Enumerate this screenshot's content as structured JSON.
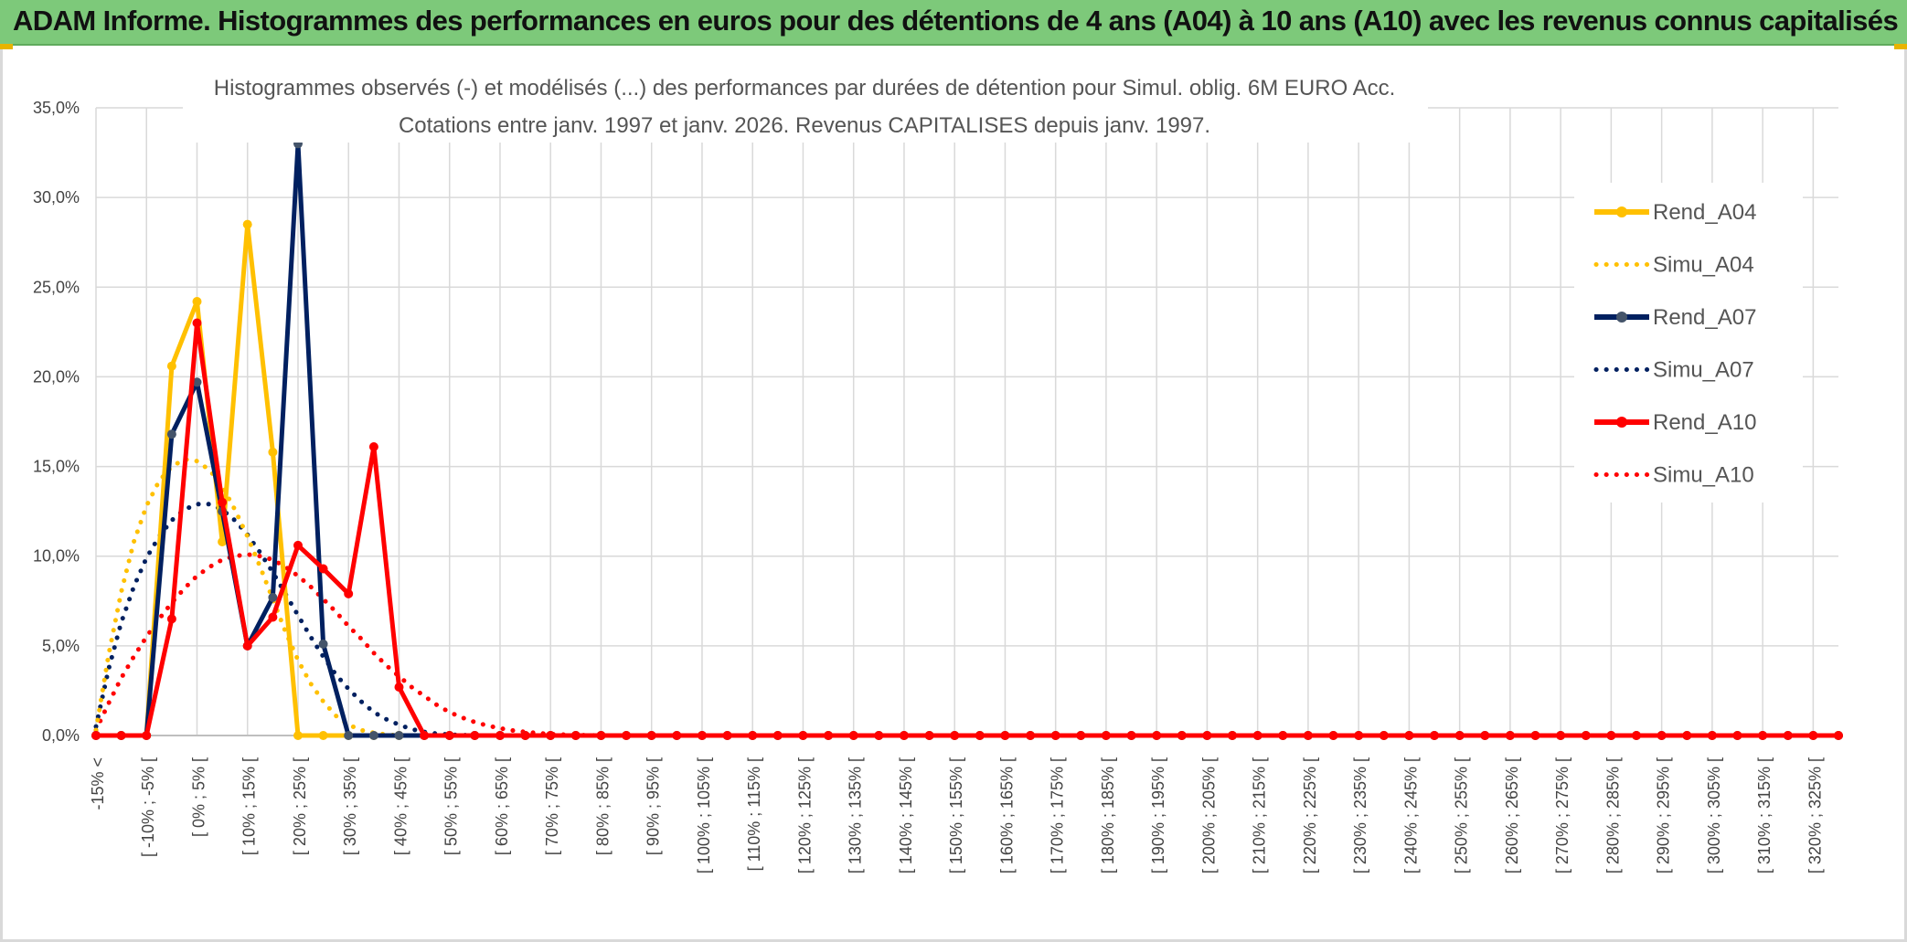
{
  "banner": {
    "title": "ADAM Informe. Histogrammes des performances en euros pour des détentions de 4 ans (A04) à 10 ans (A10) avec les revenus connus capitalisés"
  },
  "colors": {
    "A04": "#ffc000",
    "A07": "#002060",
    "A10": "#ff0000",
    "banner": "#7dc97a",
    "grid": "#d9d9d9",
    "marker_A07": "#44546a"
  },
  "chart_data": {
    "type": "line",
    "title": "Histogrammes observés (-) et modélisés (...) des performances par durées de détention pour Simul. oblig. 6M EURO Acc.",
    "subtitle": "Cotations entre janv. 1997 et janv. 2026. Revenus CAPITALISES depuis janv. 1997.",
    "xlabel": "",
    "ylabel": "",
    "ylim": [
      0,
      35
    ],
    "y_ticks": [
      "0,0%",
      "5,0%",
      "10,0%",
      "15,0%",
      "20,0%",
      "25,0%",
      "30,0%",
      "35,0%"
    ],
    "grid": true,
    "legend_position": "right",
    "x_labels": [
      "-15% <",
      "[ -10% ; -5% [",
      "[ 0% ; 5% [",
      "[ 10% ; 15% [",
      "[ 20% ; 25% [",
      "[ 30% ; 35% [",
      "[ 40% ; 45% [",
      "[ 50% ; 55% [",
      "[ 60% ; 65% [",
      "[ 70% ; 75% [",
      "[ 80% ; 85% [",
      "[ 90% ; 95% [",
      "[ 100% ; 105% [",
      "[ 110% ; 115% [",
      "[ 120% ; 125% [",
      "[ 130% ; 135% [",
      "[ 140% ; 145% [",
      "[ 150% ; 155% [",
      "[ 160% ; 165% [",
      "[ 170% ; 175% [",
      "[ 180% ; 185% [",
      "[ 190% ; 195% [",
      "[ 200% ; 205% [",
      "[ 210% ; 215% [",
      "[ 220% ; 225% [",
      "[ 230% ; 235% [",
      "[ 240% ; 245% [",
      "[ 250% ; 255% [",
      "[ 260% ; 265% [",
      "[ 270% ; 275% [",
      "[ 280% ; 285% [",
      "[ 290% ; 295% [",
      "[ 300% ; 305% [",
      "[ 310% ; 315% [",
      "[ 320% ; 325% ["
    ],
    "x_from": -15,
    "x_step": 5,
    "x_count": 70,
    "series": [
      {
        "name": "Rend_A04",
        "kind": "observed",
        "color": "#ffc000",
        "points": [
          [
            -15,
            0
          ],
          [
            -10,
            0
          ],
          [
            -5,
            0
          ],
          [
            0,
            20.6
          ],
          [
            5,
            24.2
          ],
          [
            10,
            10.8
          ],
          [
            15,
            28.5
          ],
          [
            20,
            15.8
          ],
          [
            25,
            0
          ],
          [
            30,
            0
          ],
          [
            35,
            0
          ],
          [
            40,
            0
          ],
          [
            45,
            0
          ],
          [
            50,
            0
          ]
        ]
      },
      {
        "name": "Simu_A04",
        "kind": "model",
        "color": "#ffc000",
        "points": [
          [
            -15,
            0.3
          ],
          [
            -12.5,
            4.5
          ],
          [
            -10,
            8
          ],
          [
            -7.5,
            10.8
          ],
          [
            -5,
            12.8
          ],
          [
            -2.5,
            14.2
          ],
          [
            0,
            15.0
          ],
          [
            2.5,
            15.4
          ],
          [
            5,
            15.3
          ],
          [
            7.5,
            14.8
          ],
          [
            10,
            13.9
          ],
          [
            12.5,
            12.6
          ],
          [
            15,
            11.1
          ],
          [
            17.5,
            9.4
          ],
          [
            20,
            7.6
          ],
          [
            22.5,
            5.8
          ],
          [
            25,
            4.2
          ],
          [
            27.5,
            2.9
          ],
          [
            30,
            1.9
          ],
          [
            32.5,
            1.1
          ],
          [
            35,
            0.6
          ],
          [
            37.5,
            0.3
          ],
          [
            40,
            0.15
          ],
          [
            42.5,
            0.05
          ],
          [
            45,
            0
          ],
          [
            50,
            0
          ]
        ]
      },
      {
        "name": "Rend_A07",
        "kind": "observed",
        "color": "#002060",
        "points": [
          [
            -15,
            0
          ],
          [
            -10,
            0
          ],
          [
            -5,
            0
          ],
          [
            0,
            16.8
          ],
          [
            5,
            19.7
          ],
          [
            10,
            12.5
          ],
          [
            15,
            5.0
          ],
          [
            20,
            7.7
          ],
          [
            25,
            33
          ],
          [
            30,
            5.1
          ],
          [
            35,
            0
          ],
          [
            40,
            0
          ],
          [
            45,
            0
          ],
          [
            50,
            0
          ]
        ]
      },
      {
        "name": "Simu_A07",
        "kind": "model",
        "color": "#002060",
        "points": [
          [
            -15,
            0.5
          ],
          [
            -12.5,
            3.7
          ],
          [
            -10,
            6.3
          ],
          [
            -7.5,
            8.3
          ],
          [
            -5,
            9.9
          ],
          [
            -2.5,
            11.1
          ],
          [
            0,
            12.0
          ],
          [
            2.5,
            12.6
          ],
          [
            5,
            12.9
          ],
          [
            7.5,
            12.9
          ],
          [
            10,
            12.6
          ],
          [
            12.5,
            12.0
          ],
          [
            15,
            11.2
          ],
          [
            17.5,
            10.2
          ],
          [
            20,
            9.1
          ],
          [
            22.5,
            7.9
          ],
          [
            25,
            6.7
          ],
          [
            27.5,
            5.5
          ],
          [
            30,
            4.4
          ],
          [
            32.5,
            3.4
          ],
          [
            35,
            2.6
          ],
          [
            37.5,
            1.9
          ],
          [
            40,
            1.3
          ],
          [
            42.5,
            0.9
          ],
          [
            45,
            0.6
          ],
          [
            47.5,
            0.35
          ],
          [
            50,
            0.2
          ],
          [
            52.5,
            0.1
          ],
          [
            55,
            0.05
          ],
          [
            60,
            0
          ]
        ]
      },
      {
        "name": "Rend_A10",
        "kind": "observed",
        "color": "#ff0000",
        "points": [
          [
            -15,
            0
          ],
          [
            -10,
            0
          ],
          [
            -5,
            0
          ],
          [
            0,
            6.5
          ],
          [
            5,
            23.0
          ],
          [
            10,
            13.0
          ],
          [
            15,
            5.0
          ],
          [
            20,
            6.6
          ],
          [
            25,
            10.6
          ],
          [
            30,
            9.3
          ],
          [
            35,
            7.9
          ],
          [
            40,
            16.1
          ],
          [
            45,
            2.7
          ],
          [
            50,
            0
          ],
          [
            55,
            0
          ],
          [
            60,
            0
          ]
        ]
      },
      {
        "name": "Simu_A10",
        "kind": "model",
        "color": "#ff0000",
        "points": [
          [
            -15,
            0.3
          ],
          [
            -12.5,
            1.8
          ],
          [
            -10,
            3.2
          ],
          [
            -7.5,
            4.4
          ],
          [
            -5,
            5.5
          ],
          [
            -2.5,
            6.5
          ],
          [
            0,
            7.4
          ],
          [
            2.5,
            8.2
          ],
          [
            5,
            8.9
          ],
          [
            7.5,
            9.4
          ],
          [
            10,
            9.8
          ],
          [
            12.5,
            10.0
          ],
          [
            15,
            10.1
          ],
          [
            17.5,
            10.0
          ],
          [
            20,
            9.8
          ],
          [
            22.5,
            9.4
          ],
          [
            25,
            8.9
          ],
          [
            27.5,
            8.3
          ],
          [
            30,
            7.6
          ],
          [
            32.5,
            6.9
          ],
          [
            35,
            6.1
          ],
          [
            37.5,
            5.4
          ],
          [
            40,
            4.6
          ],
          [
            42.5,
            3.9
          ],
          [
            45,
            3.3
          ],
          [
            47.5,
            2.7
          ],
          [
            50,
            2.2
          ],
          [
            52.5,
            1.7
          ],
          [
            55,
            1.3
          ],
          [
            57.5,
            1.0
          ],
          [
            60,
            0.75
          ],
          [
            62.5,
            0.55
          ],
          [
            65,
            0.4
          ],
          [
            67.5,
            0.28
          ],
          [
            70,
            0.2
          ],
          [
            72.5,
            0.13
          ],
          [
            75,
            0.08
          ],
          [
            77.5,
            0.05
          ],
          [
            80,
            0.03
          ],
          [
            82.5,
            0.01
          ],
          [
            85,
            0
          ]
        ]
      }
    ]
  }
}
